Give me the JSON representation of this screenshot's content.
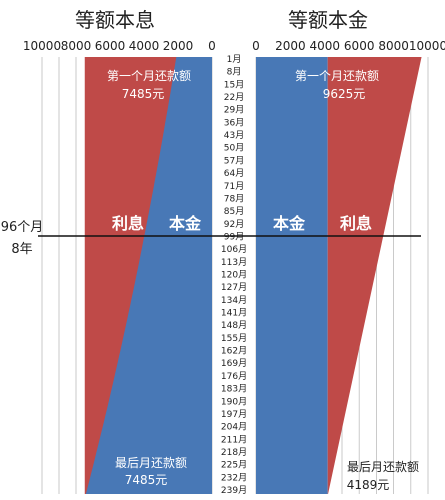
{
  "chart_data": [
    {
      "type": "area",
      "title": "等额本息",
      "x_ticks": [
        10000,
        8000,
        6000,
        4000,
        2000,
        0
      ],
      "xlim": [
        0,
        10000
      ],
      "x_reversed": true,
      "months": 240,
      "series": [
        {
          "name": "利息",
          "color": "#bf4a48"
        },
        {
          "name": "本金",
          "color": "#4878b6"
        }
      ],
      "total_payment": 7485,
      "principal_first": 2100,
      "principal_last": 7420,
      "annotations": {
        "first_label": "第一个月还款额",
        "first_value": "7485元",
        "last_label": "最后月还款额",
        "last_value": "7485元"
      }
    },
    {
      "type": "area",
      "title": "等额本金",
      "x_ticks": [
        0,
        2000,
        4000,
        6000,
        8000,
        10000
      ],
      "xlim": [
        0,
        10000
      ],
      "months": 240,
      "series": [
        {
          "name": "本金",
          "color": "#4878b6"
        },
        {
          "name": "利息",
          "color": "#bf4a48"
        }
      ],
      "principal": 4167,
      "total_first": 9625,
      "total_last": 4189,
      "annotations": {
        "first_label": "第一个月还款额",
        "first_value": "9625元",
        "last_label": "最后月还款额",
        "last_value": "4189元"
      }
    }
  ],
  "month_labels": [
    "1月",
    "8月",
    "15月",
    "22月",
    "29月",
    "36月",
    "43月",
    "50月",
    "57月",
    "64月",
    "71月",
    "78月",
    "85月",
    "92月",
    "99月",
    "106月",
    "113月",
    "120月",
    "127月",
    "134月",
    "141月",
    "148月",
    "155月",
    "162月",
    "169月",
    "176月",
    "183月",
    "190月",
    "197月",
    "204月",
    "211月",
    "218月",
    "225月",
    "232月",
    "239月"
  ],
  "marker": {
    "line1": "96个月",
    "line2": "8年"
  }
}
